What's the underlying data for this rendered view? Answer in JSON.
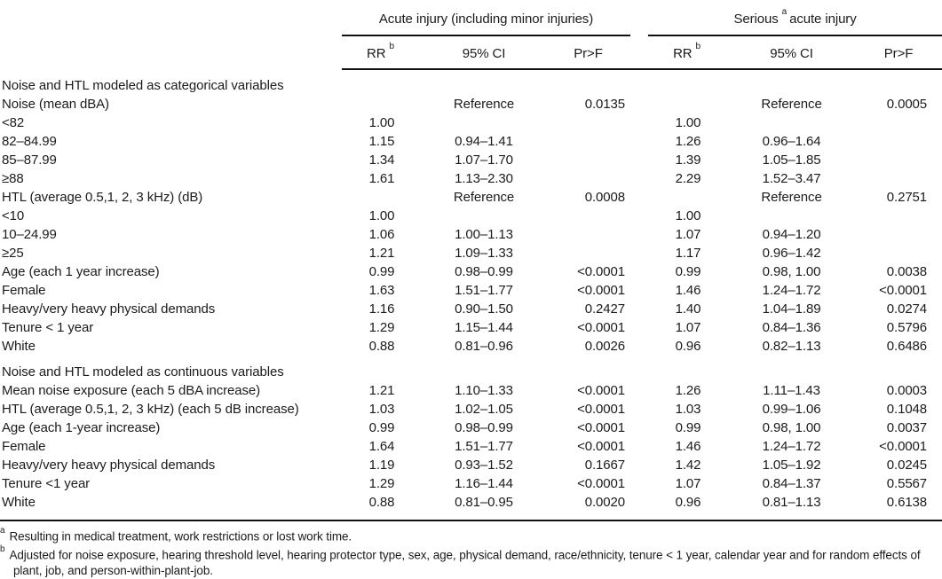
{
  "header": {
    "group_acute": "Acute injury (including minor injuries)",
    "group_serious_pre": "Serious",
    "group_serious_sup": "a",
    "group_serious_post": "acute injury",
    "rr_label": "RR",
    "rr_sup": "b",
    "ci_label": "95% CI",
    "prf_label": "Pr>F"
  },
  "rows": [
    {
      "label": "Noise and HTL modeled as categorical variables",
      "indent": 0,
      "section": true,
      "a": [
        "",
        "",
        ""
      ],
      "s": [
        "",
        "",
        ""
      ]
    },
    {
      "label": "Noise (mean dBA)",
      "indent": 1,
      "section": false,
      "a": [
        "",
        "Reference",
        "0.0135"
      ],
      "s": [
        "",
        "Reference",
        "0.0005"
      ]
    },
    {
      "label": "<82",
      "indent": 2,
      "section": false,
      "a": [
        "1.00",
        "",
        ""
      ],
      "s": [
        "1.00",
        "",
        ""
      ]
    },
    {
      "label": "82–84.99",
      "indent": 2,
      "section": false,
      "a": [
        "1.15",
        "0.94–1.41",
        ""
      ],
      "s": [
        "1.26",
        "0.96–1.64",
        ""
      ]
    },
    {
      "label": "85–87.99",
      "indent": 2,
      "section": false,
      "a": [
        "1.34",
        "1.07–1.70",
        ""
      ],
      "s": [
        "1.39",
        "1.05–1.85",
        ""
      ]
    },
    {
      "label": "≥88",
      "indent": 2,
      "section": false,
      "a": [
        "1.61",
        "1.13–2.30",
        ""
      ],
      "s": [
        "2.29",
        "1.52–3.47",
        ""
      ]
    },
    {
      "label": "HTL (average 0.5,1, 2, 3 kHz) (dB)",
      "indent": 1,
      "section": false,
      "a": [
        "",
        "Reference",
        "0.0008"
      ],
      "s": [
        "",
        "Reference",
        "0.2751"
      ]
    },
    {
      "label": "<10",
      "indent": 2,
      "section": false,
      "a": [
        "1.00",
        "",
        ""
      ],
      "s": [
        "1.00",
        "",
        ""
      ]
    },
    {
      "label": "10–24.99",
      "indent": 2,
      "section": false,
      "a": [
        "1.06",
        "1.00–1.13",
        ""
      ],
      "s": [
        "1.07",
        "0.94–1.20",
        ""
      ]
    },
    {
      "label": "≥25",
      "indent": 2,
      "section": false,
      "a": [
        "1.21",
        "1.09–1.33",
        ""
      ],
      "s": [
        "1.17",
        "0.96–1.42",
        ""
      ]
    },
    {
      "label": "Age (each 1 year increase)",
      "indent": 1,
      "section": false,
      "a": [
        "0.99",
        "0.98–0.99",
        "<0.0001"
      ],
      "s": [
        "0.99",
        "0.98, 1.00",
        "0.0038"
      ]
    },
    {
      "label": "Female",
      "indent": 1,
      "section": false,
      "a": [
        "1.63",
        "1.51–1.77",
        "<0.0001"
      ],
      "s": [
        "1.46",
        "1.24–1.72",
        "<0.0001"
      ]
    },
    {
      "label": "Heavy/very heavy physical demands",
      "indent": 1,
      "section": false,
      "a": [
        "1.16",
        "0.90–1.50",
        "0.2427"
      ],
      "s": [
        "1.40",
        "1.04–1.89",
        "0.0274"
      ]
    },
    {
      "label": "Tenure < 1 year",
      "indent": 1,
      "section": false,
      "a": [
        "1.29",
        "1.15–1.44",
        "<0.0001"
      ],
      "s": [
        "1.07",
        "0.84–1.36",
        "0.5796"
      ]
    },
    {
      "label": "White",
      "indent": 1,
      "section": false,
      "a": [
        "0.88",
        "0.81–0.96",
        "0.0026"
      ],
      "s": [
        "0.96",
        "0.82–1.13",
        "0.6486"
      ]
    },
    {
      "label": "Noise and HTL modeled as continuous variables",
      "indent": 0,
      "section": true,
      "a": [
        "",
        "",
        ""
      ],
      "s": [
        "",
        "",
        ""
      ]
    },
    {
      "label": "Mean noise exposure (each 5 dBA increase)",
      "indent": 1,
      "section": false,
      "a": [
        "1.21",
        "1.10–1.33",
        "<0.0001"
      ],
      "s": [
        "1.26",
        "1.11–1.43",
        "0.0003"
      ]
    },
    {
      "label": "HTL (average 0.5,1, 2, 3 kHz) (each 5 dB increase)",
      "indent": 1,
      "section": false,
      "a": [
        "1.03",
        "1.02–1.05",
        "<0.0001"
      ],
      "s": [
        "1.03",
        "0.99–1.06",
        "0.1048"
      ]
    },
    {
      "label": "Age (each 1-year increase)",
      "indent": 1,
      "section": false,
      "a": [
        "0.99",
        "0.98–0.99",
        "<0.0001"
      ],
      "s": [
        "0.99",
        "0.98, 1.00",
        "0.0037"
      ]
    },
    {
      "label": "Female",
      "indent": 1,
      "section": false,
      "a": [
        "1.64",
        "1.51–1.77",
        "<0.0001"
      ],
      "s": [
        "1.46",
        "1.24–1.72",
        "<0.0001"
      ]
    },
    {
      "label": "Heavy/very heavy physical demands",
      "indent": 1,
      "section": false,
      "a": [
        "1.19",
        "0.93–1.52",
        "0.1667"
      ],
      "s": [
        "1.42",
        "1.05–1.92",
        "0.0245"
      ]
    },
    {
      "label": "Tenure <1 year",
      "indent": 1,
      "section": false,
      "a": [
        "1.29",
        "1.16–1.44",
        "<0.0001"
      ],
      "s": [
        "1.07",
        "0.84–1.37",
        "0.5567"
      ]
    },
    {
      "label": "White",
      "indent": 1,
      "section": false,
      "a": [
        "0.88",
        "0.81–0.95",
        "0.0020"
      ],
      "s": [
        "0.96",
        "0.81–1.13",
        "0.6138"
      ]
    }
  ],
  "footnotes": [
    {
      "marker": "a",
      "text": "Resulting in medical treatment, work restrictions or lost work time."
    },
    {
      "marker": "b",
      "text": "Adjusted for noise exposure, hearing threshold level, hearing protector type, sex, age, physical demand, race/ethnicity, tenure < 1 year, calendar year and for random effects of plant, job, and person-within-plant-job."
    }
  ]
}
